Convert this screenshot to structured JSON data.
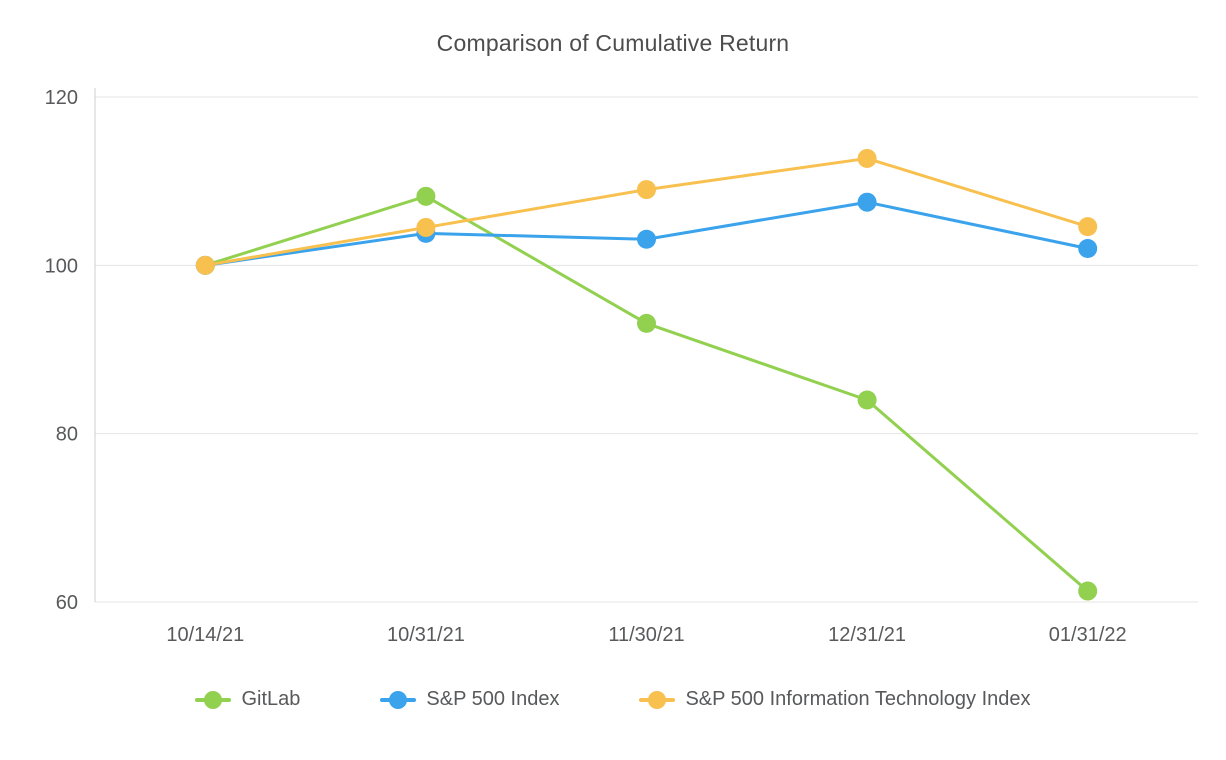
{
  "chart_data": {
    "type": "line",
    "title": "Comparison of Cumulative Return",
    "categories": [
      "10/14/21",
      "10/31/21",
      "11/30/21",
      "12/31/21",
      "01/31/22"
    ],
    "yticks": [
      60,
      80,
      100,
      120
    ],
    "ylim": [
      60,
      120
    ],
    "grid": "horizontal-only",
    "legend_position": "bottom",
    "series": [
      {
        "name": "GitLab",
        "color": "#92D050",
        "values": [
          100,
          108.2,
          93.1,
          84.0,
          61.3
        ]
      },
      {
        "name": "S&P 500 Index",
        "color": "#3AA3EC",
        "values": [
          100,
          103.8,
          103.1,
          107.5,
          102.0
        ]
      },
      {
        "name": "S&P 500 Information Technology Index",
        "color": "#F8C04E",
        "values": [
          100,
          104.5,
          109.0,
          112.7,
          104.6
        ]
      }
    ]
  }
}
